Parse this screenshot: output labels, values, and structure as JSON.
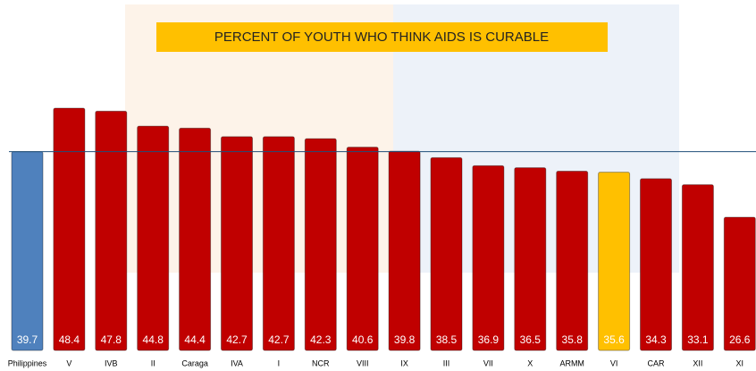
{
  "chart_data": {
    "type": "bar",
    "title": "PERCENT OF YOUTH WHO THINK AIDS  IS CURABLE",
    "categories": [
      "Philippines",
      "V",
      "IVB",
      "II",
      "Caraga",
      "IVA",
      "I",
      "NCR",
      "VIII",
      "IX",
      "III",
      "VII",
      "X",
      "ARMM",
      "VI",
      "CAR",
      "XII",
      "XI"
    ],
    "values": [
      39.7,
      48.4,
      47.8,
      44.8,
      44.4,
      42.7,
      42.7,
      42.3,
      40.6,
      39.8,
      38.5,
      36.9,
      36.5,
      35.8,
      35.6,
      34.3,
      33.1,
      26.6
    ],
    "colors": [
      "#4f81bd",
      "#c00000",
      "#c00000",
      "#c00000",
      "#c00000",
      "#c00000",
      "#c00000",
      "#c00000",
      "#c00000",
      "#c00000",
      "#c00000",
      "#c00000",
      "#c00000",
      "#c00000",
      "#ffc000",
      "#c00000",
      "#c00000",
      "#c00000"
    ],
    "ylim": [
      0,
      70
    ]
  }
}
